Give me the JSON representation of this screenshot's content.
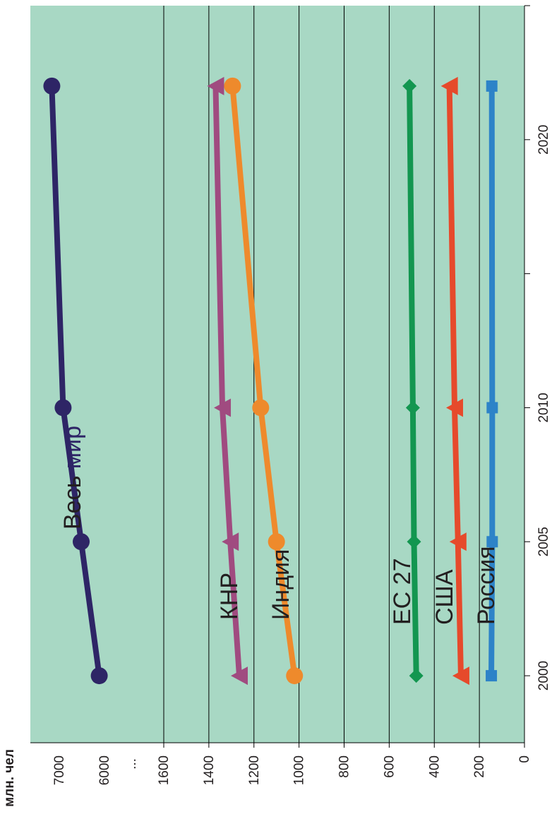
{
  "chart_data": {
    "type": "line",
    "orientation": "rotated-90",
    "ylabel": "млн. чел",
    "y_break_label": "...",
    "x": [
      2000,
      2005,
      2010,
      2022
    ],
    "x_tick_labels": [
      "2000",
      "2005",
      "2010",
      "2020"
    ],
    "x_axis_range": [
      1997.5,
      2025
    ],
    "y_ticks_lower": [
      "0",
      "200",
      "400",
      "600",
      "800",
      "1000",
      "1200",
      "1400",
      "1600"
    ],
    "y_ticks_upper": [
      "6000",
      "7000"
    ],
    "ylim_lower": [
      0,
      1600
    ],
    "grid": true,
    "background_color": "#a8d8c4",
    "series": [
      {
        "name": "Весь мир",
        "name_parts": [
          "Весь",
          "мир"
        ],
        "values": [
          6100,
          6500,
          6900,
          7150
        ],
        "color": "#2e2566",
        "marker": "circle"
      },
      {
        "name": "КНР",
        "values": [
          1265,
          1305,
          1340,
          1370
        ],
        "color": "#a04b80",
        "marker": "triangle"
      },
      {
        "name": "Индия",
        "values": [
          1020,
          1100,
          1170,
          1295
        ],
        "color": "#ee8a2c",
        "marker": "circle"
      },
      {
        "name": "ЕС 27",
        "values": [
          480,
          490,
          495,
          510
        ],
        "color": "#139650",
        "marker": "diamond"
      },
      {
        "name": "США",
        "values": [
          282,
          295,
          310,
          333
        ],
        "color": "#e64a2b",
        "marker": "triangle"
      },
      {
        "name": "Россия",
        "values": [
          147,
          143,
          143,
          145
        ],
        "color": "#2d83c8",
        "marker": "square"
      }
    ]
  }
}
